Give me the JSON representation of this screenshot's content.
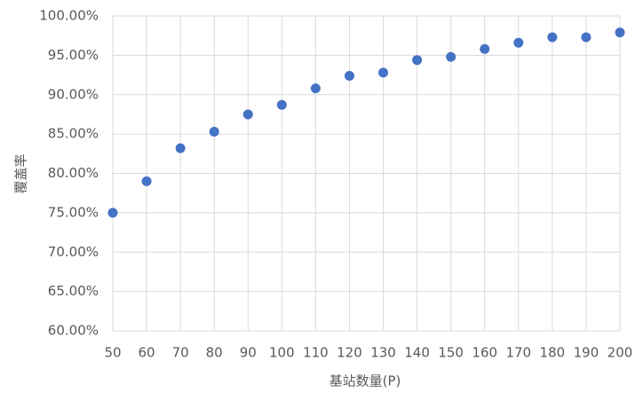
{
  "chart_data": {
    "type": "scatter",
    "x_label": "基站数量(P)",
    "y_label": "覆盖率",
    "x": [
      50,
      60,
      70,
      80,
      90,
      100,
      110,
      120,
      130,
      140,
      150,
      160,
      170,
      180,
      190,
      200
    ],
    "series": [
      {
        "color": "#4472c4",
        "values": [
          75.0,
          79.0,
          83.2,
          85.3,
          87.5,
          88.7,
          90.8,
          92.4,
          92.8,
          94.4,
          94.8,
          95.8,
          96.6,
          97.3,
          97.3,
          97.9
        ]
      }
    ],
    "xlim": [
      50,
      200
    ],
    "xticks": [
      50,
      60,
      70,
      80,
      90,
      100,
      110,
      120,
      130,
      140,
      150,
      160,
      170,
      180,
      190,
      200
    ],
    "ylim": [
      60,
      100
    ],
    "yticks": [
      {
        "value": 60,
        "label": "60.00%"
      },
      {
        "value": 65,
        "label": "65.00%"
      },
      {
        "value": 70,
        "label": "70.00%"
      },
      {
        "value": 75,
        "label": "75.00%"
      },
      {
        "value": 80,
        "label": "80.00%"
      },
      {
        "value": 85,
        "label": "85.00%"
      },
      {
        "value": 90,
        "label": "90.00%"
      },
      {
        "value": 95,
        "label": "95.00%"
      },
      {
        "value": 100,
        "label": "100.00%"
      }
    ],
    "grid": true
  }
}
